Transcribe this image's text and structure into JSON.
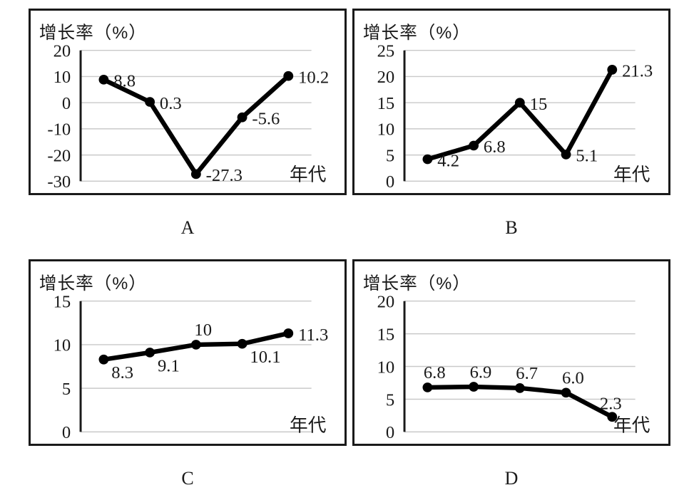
{
  "figure": {
    "background": "#ffffff",
    "line_color": "#000000",
    "grid_color": "#c9c9c9",
    "border_color": "#1a1a1a",
    "text_color": "#1a1a1a"
  },
  "chart_data": [
    {
      "panel_label": "A",
      "type": "line",
      "title": "增长率（%）",
      "xlabel": "年代",
      "ylabel": "增长率（%）",
      "yticks": [
        20,
        10,
        0,
        -10,
        -20,
        -30
      ],
      "ylim": [
        -30,
        20
      ],
      "grid": true,
      "legend": "none",
      "values": [
        8.8,
        0.3,
        -27.3,
        -5.6,
        10.2
      ],
      "point_labels": [
        "8.8",
        "0.3",
        "-27.3",
        "-5.6",
        "10.2"
      ],
      "label_placement": [
        "right",
        "right",
        "right",
        "right",
        "right"
      ]
    },
    {
      "panel_label": "B",
      "type": "line",
      "title": "增长率（%）",
      "xlabel": "年代",
      "ylabel": "增长率（%）",
      "yticks": [
        25,
        20,
        15,
        10,
        5,
        0
      ],
      "ylim": [
        0,
        25
      ],
      "grid": true,
      "legend": "none",
      "values": [
        4.2,
        6.8,
        15,
        5.1,
        21.3
      ],
      "point_labels": [
        "4.2",
        "6.8",
        "15",
        "5.1",
        "21.3"
      ],
      "label_placement": [
        "right",
        "right",
        "right",
        "right",
        "right"
      ]
    },
    {
      "panel_label": "C",
      "type": "line",
      "title": "增长率（%）",
      "xlabel": "年代",
      "ylabel": "增长率（%）",
      "yticks": [
        15,
        10,
        5,
        0
      ],
      "ylim": [
        0,
        15
      ],
      "grid": true,
      "legend": "none",
      "values": [
        8.3,
        9.1,
        10,
        10.1,
        11.3
      ],
      "point_labels": [
        "8.3",
        "9.1",
        "10",
        "10.1",
        "11.3"
      ],
      "label_placement": [
        "below-right",
        "below-right",
        "above",
        "below-right",
        "right"
      ]
    },
    {
      "panel_label": "D",
      "type": "line",
      "title": "增长率（%）",
      "xlabel": "年代",
      "ylabel": "增长率（%）",
      "yticks": [
        20,
        15,
        10,
        5,
        0
      ],
      "ylim": [
        0,
        20
      ],
      "grid": true,
      "legend": "none",
      "values": [
        6.8,
        6.9,
        6.7,
        6.0,
        2.3
      ],
      "point_labels": [
        "6.8",
        "6.9",
        "6.7",
        "6.0",
        "2.3"
      ],
      "label_placement": [
        "above",
        "above",
        "above",
        "above",
        "above-left"
      ]
    }
  ]
}
